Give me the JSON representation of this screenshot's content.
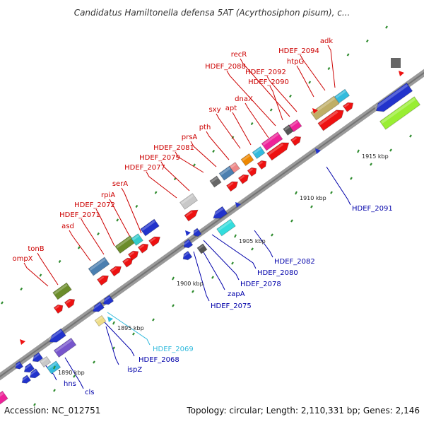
{
  "title": "Candidatus Hamiltonella defensa 5AT (Acyrthosiphon pisum), c...",
  "footer": {
    "accession": "Accession: NC_012751",
    "topology": "Topology: circular; Length: 2,110,331 bp; Genes: 2,146"
  },
  "colors": {
    "forward_label": "#cc0000",
    "reverse_label": "#0000aa",
    "highlight_label": "#33bbdd",
    "backbone": "#9a9a9a",
    "tick": "#2e8b2e"
  },
  "ruler": [
    "1890 kbp",
    "1895 kbp",
    "1900 kbp",
    "1905 kbp",
    "1910 kbp",
    "1915 kbp"
  ],
  "genes_forward": [
    "ompX",
    "tonB",
    "asd",
    "HDEF_2071",
    "HDEF_2072",
    "rpiA",
    "serA",
    "HDEF_2077",
    "HDEF_2079",
    "HDEF_2081",
    "prsA",
    "pth",
    "sxy",
    "apt",
    "dnaX",
    "HDEF_2088",
    "HDEF_2090",
    "recR",
    "HDEF_2092",
    "htpG",
    "HDEF_2094",
    "adk"
  ],
  "genes_reverse": [
    "hns",
    "cls",
    "ispZ",
    "HDEF_2068",
    "HDEF_2069",
    "HDEF_2075",
    "zapA",
    "HDEF_2078",
    "HDEF_2080",
    "HDEF_2082",
    "HDEF_2091"
  ]
}
